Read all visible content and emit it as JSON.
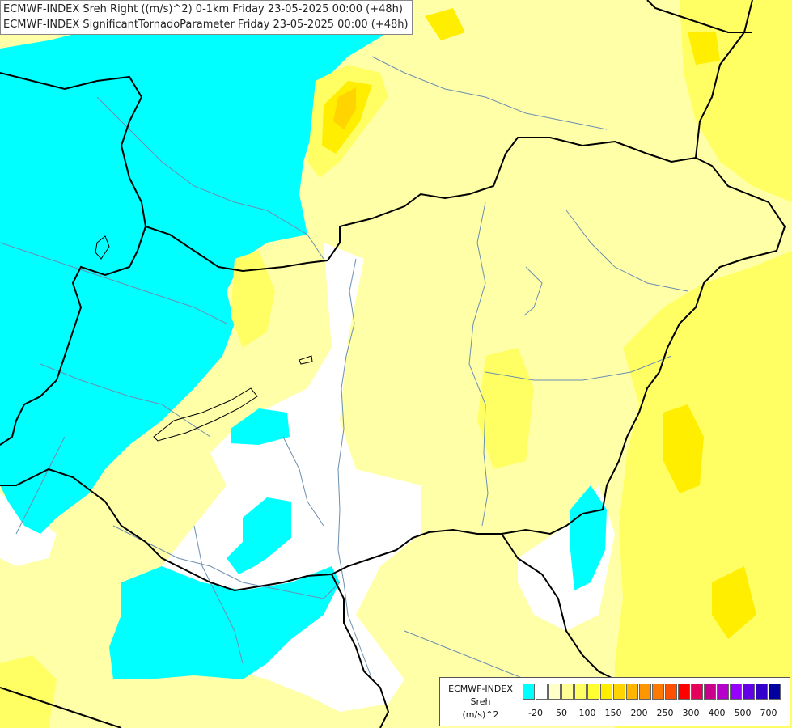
{
  "map": {
    "title_line_1": "ECMWF-INDEX Sreh Right ((m/s)^2) 0-1km Friday 23-05-2025 00:00 (+48h)",
    "title_line_2": "ECMWF-INDEX SignificantTornadoParameter Friday 23-05-2025 00:00 (+48h)"
  },
  "legend": {
    "model": "ECMWF-INDEX",
    "parameter": "Sreh",
    "unit": "(m/s)^2",
    "colors": [
      "#00ffff",
      "#ffffff",
      "#ffffc8",
      "#ffff96",
      "#ffff64",
      "#ffff32",
      "#ffee00",
      "#ffd400",
      "#ffb400",
      "#ff9600",
      "#ff7800",
      "#ff5000",
      "#ff0000",
      "#e6005a",
      "#c8008c",
      "#b400c8",
      "#9600ff",
      "#6400e6",
      "#3200c8",
      "#0000a0"
    ],
    "ticks": [
      "-20",
      "50",
      "100",
      "150",
      "200",
      "250",
      "300",
      "400",
      "500",
      "700"
    ]
  }
}
